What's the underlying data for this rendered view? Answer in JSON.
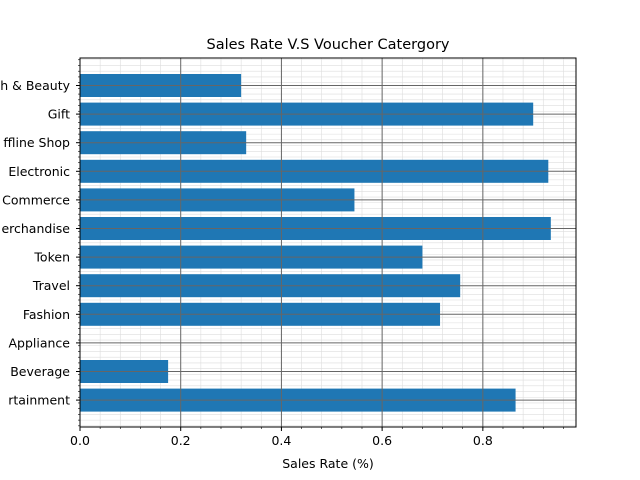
{
  "chart_data": {
    "type": "bar",
    "orientation": "horizontal",
    "title": "Sales Rate V.S Voucher Catergory",
    "xlabel": "Sales Rate (%)",
    "ylabel": "",
    "xlim": [
      0,
      0.985
    ],
    "xticks": [
      0.0,
      0.2,
      0.4,
      0.6,
      0.8
    ],
    "xtick_labels": [
      "0.0",
      "0.2",
      "0.4",
      "0.6",
      "0.8"
    ],
    "grid": "major and minor",
    "categories": [
      "Health & Beauty",
      "Gift",
      "Offline Shop",
      "Electronic",
      "E-Commerce",
      "Merchandise",
      "Token",
      "Travel",
      "Fashion",
      "Appliance",
      "Food & Beverage",
      "Entertainment"
    ],
    "category_labels_visible": [
      "h & Beauty",
      "Gift",
      "ffline Shop",
      "Electronic",
      "Commerce",
      "erchandise",
      "Token",
      "Travel",
      "Fashion",
      "Appliance",
      "Beverage",
      "rtainment"
    ],
    "values": [
      0.32,
      0.9,
      0.33,
      0.93,
      0.545,
      0.935,
      0.68,
      0.755,
      0.715,
      0.0,
      0.175,
      0.865
    ],
    "bar_color": "#1f77b4"
  }
}
